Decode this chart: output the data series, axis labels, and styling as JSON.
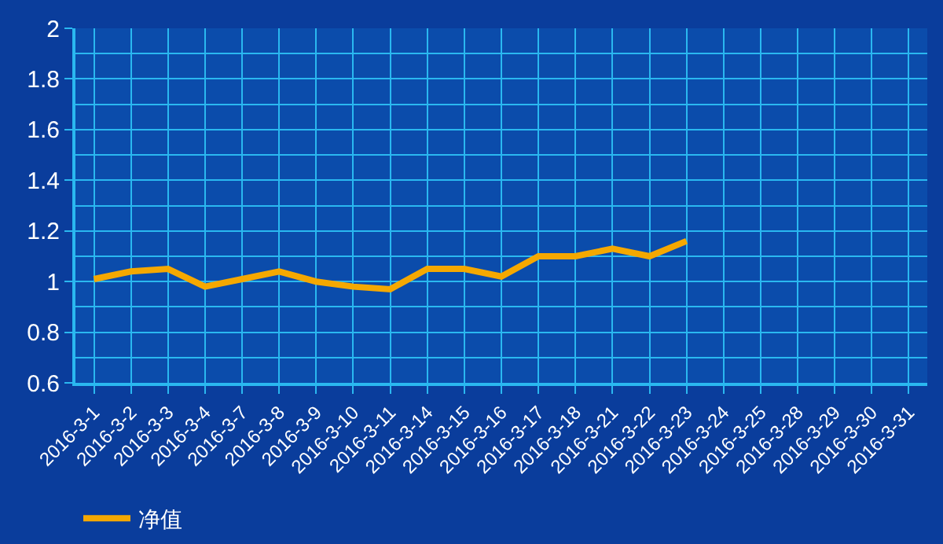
{
  "chart_data": {
    "type": "line",
    "categories": [
      "2016-3-1",
      "2016-3-2",
      "2016-3-3",
      "2016-3-4",
      "2016-3-7",
      "2016-3-8",
      "2016-3-9",
      "2016-3-10",
      "2016-3-11",
      "2016-3-14",
      "2016-3-15",
      "2016-3-16",
      "2016-3-17",
      "2016-3-18",
      "2016-3-21",
      "2016-3-22",
      "2016-3-23",
      "2016-3-24",
      "2016-3-25",
      "2016-3-28",
      "2016-3-29",
      "2016-3-30",
      "2016-3-31"
    ],
    "series": [
      {
        "name": "净值",
        "color": "#f5a800",
        "values": [
          1.01,
          1.04,
          1.05,
          0.98,
          1.01,
          1.04,
          1.0,
          0.98,
          0.97,
          1.05,
          1.05,
          1.02,
          1.1,
          1.1,
          1.13,
          1.1,
          1.16,
          null,
          null,
          null,
          null,
          null,
          null
        ]
      }
    ],
    "ylim": [
      0.6,
      2
    ],
    "yticks": [
      0.6,
      {
        "value": 0.8,
        "label": "0.8"
      },
      1,
      1.2,
      1.4,
      1.6,
      1.8,
      2
    ],
    "grid": true,
    "legend": "bottom left",
    "marker": "none",
    "line_style": "solid"
  }
}
